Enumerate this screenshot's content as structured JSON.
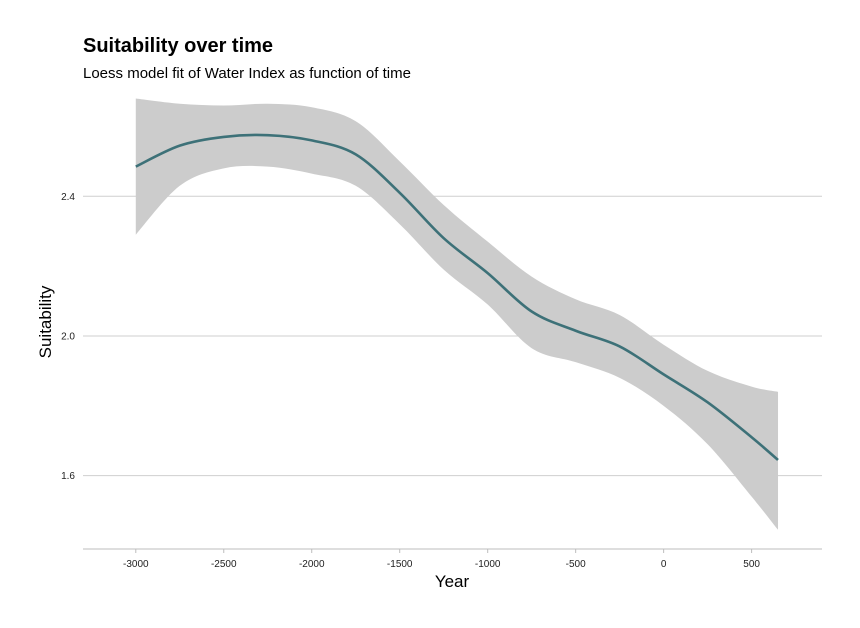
{
  "title": "Suitability over time",
  "subtitle": "Loess model fit of Water Index as function of time",
  "colors": {
    "line": "#3d7178",
    "band": "#cccccc",
    "grid": "#cfcfcf",
    "axis": "#bdbdbd"
  },
  "chart_data": {
    "type": "line",
    "title": "Suitability over time",
    "subtitle": "Loess model fit of Water Index as function of time",
    "xlabel": "Year",
    "ylabel": "Suitability",
    "xlim": [
      -3300,
      900
    ],
    "ylim": [
      1.39,
      2.69
    ],
    "x_ticks": [
      -3000,
      -2500,
      -2000,
      -1500,
      -1000,
      -500,
      0,
      500
    ],
    "y_ticks": [
      1.6,
      2.0,
      2.4
    ],
    "x_tick_labels": [
      "-3000",
      "-2500",
      "-2000",
      "-1500",
      "-1000",
      "-500",
      "0",
      "500"
    ],
    "y_tick_labels": [
      "1.6",
      "2.0",
      "2.4"
    ],
    "grid": "horizontal-major",
    "series": [
      {
        "x": [
          -3000,
          -2750,
          -2500,
          -2250,
          -2000,
          -1750,
          -1500,
          -1250,
          -1000,
          -750,
          -500,
          -250,
          0,
          250,
          500,
          650
        ],
        "y": [
          2.485,
          2.545,
          2.57,
          2.575,
          2.56,
          2.52,
          2.41,
          2.28,
          2.18,
          2.07,
          2.015,
          1.97,
          1.89,
          1.81,
          1.71,
          1.645
        ],
        "lower": [
          2.29,
          2.43,
          2.48,
          2.485,
          2.465,
          2.43,
          2.32,
          2.19,
          2.09,
          1.965,
          1.925,
          1.88,
          1.8,
          1.69,
          1.54,
          1.445
        ],
        "upper": [
          2.68,
          2.665,
          2.66,
          2.665,
          2.655,
          2.615,
          2.5,
          2.375,
          2.27,
          2.17,
          2.105,
          2.06,
          1.975,
          1.9,
          1.855,
          1.84
        ]
      }
    ]
  }
}
